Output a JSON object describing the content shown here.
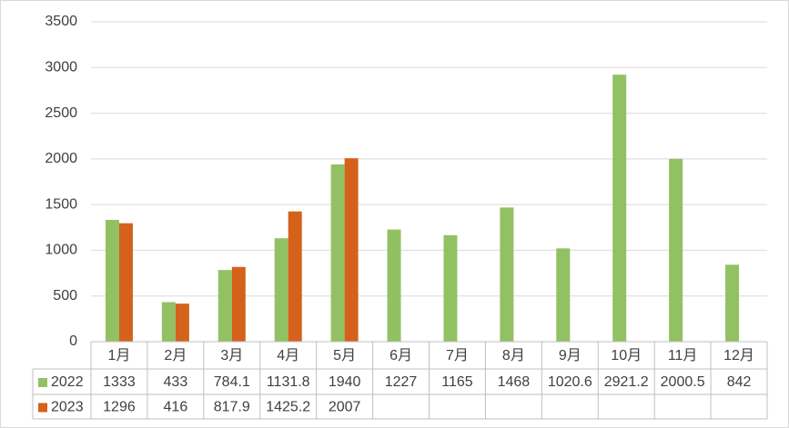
{
  "chart_data": {
    "type": "bar",
    "categories": [
      "1月",
      "2月",
      "3月",
      "4月",
      "5月",
      "6月",
      "7月",
      "8月",
      "9月",
      "10月",
      "11月",
      "12月"
    ],
    "series": [
      {
        "name": "2022",
        "color": "#92c163",
        "values": [
          1333,
          433,
          784.1,
          1131.8,
          1940,
          1227,
          1165,
          1468,
          1020.6,
          2921.2,
          2000.5,
          842
        ]
      },
      {
        "name": "2023",
        "color": "#d4621b",
        "values": [
          1296,
          416,
          817.9,
          1425.2,
          2007,
          null,
          null,
          null,
          null,
          null,
          null,
          null
        ]
      }
    ],
    "ylim": [
      0,
      3500
    ],
    "yticks": [
      0,
      500,
      1000,
      1500,
      2000,
      2500,
      3000,
      3500
    ],
    "grid": true,
    "data_table": true
  }
}
